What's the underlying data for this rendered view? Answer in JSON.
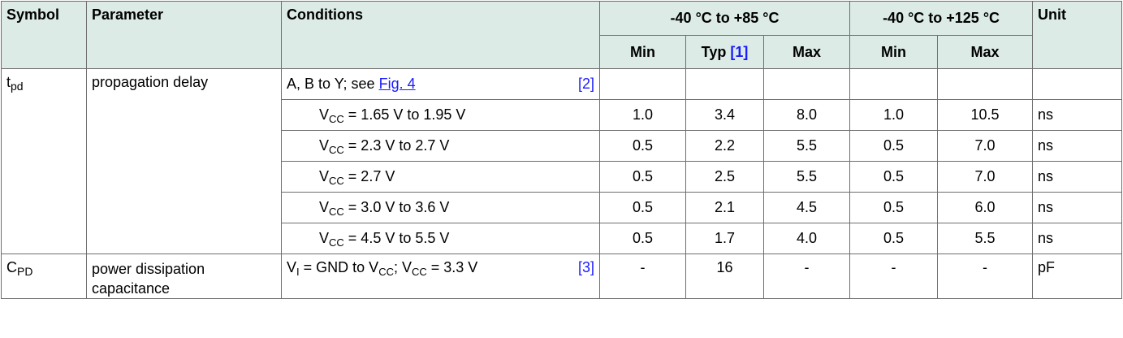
{
  "header": {
    "symbol": "Symbol",
    "parameter": "Parameter",
    "conditions": "Conditions",
    "range1": "-40 °C to +85 °C",
    "range2": "-40 °C to +125 °C",
    "unit": "Unit",
    "min": "Min",
    "typ": "Typ",
    "typ_ref": "[1]",
    "max": "Max"
  },
  "tpd": {
    "symbol_main": "t",
    "symbol_sub": "pd",
    "parameter": "propagation delay",
    "cond_text": "A, B to Y; see ",
    "cond_link": "Fig. 4",
    "cond_ref": "[2]"
  },
  "rows": [
    {
      "v": "V",
      "sub": "CC",
      "cond": " = 1.65 V to 1.95 V",
      "min85": "1.0",
      "typ": "3.4",
      "max85": "8.0",
      "min125": "1.0",
      "max125": "10.5",
      "unit": "ns"
    },
    {
      "v": "V",
      "sub": "CC",
      "cond": " = 2.3 V to 2.7 V",
      "min85": "0.5",
      "typ": "2.2",
      "max85": "5.5",
      "min125": "0.5",
      "max125": "7.0",
      "unit": "ns"
    },
    {
      "v": "V",
      "sub": "CC",
      "cond": " = 2.7 V",
      "min85": "0.5",
      "typ": "2.5",
      "max85": "5.5",
      "min125": "0.5",
      "max125": "7.0",
      "unit": "ns"
    },
    {
      "v": "V",
      "sub": "CC",
      "cond": " = 3.0 V to 3.6 V",
      "min85": "0.5",
      "typ": "2.1",
      "max85": "4.5",
      "min125": "0.5",
      "max125": "6.0",
      "unit": "ns"
    },
    {
      "v": "V",
      "sub": "CC",
      "cond": " = 4.5 V to 5.5 V",
      "min85": "0.5",
      "typ": "1.7",
      "max85": "4.0",
      "min125": "0.5",
      "max125": "5.5",
      "unit": "ns"
    }
  ],
  "cpd": {
    "symbol_main": "C",
    "symbol_sub": "PD",
    "parameter_line1": "power dissipation",
    "parameter_line2": "capacitance",
    "cond_a": "V",
    "cond_a_sub": "I",
    "cond_b": " = GND to V",
    "cond_b_sub": "CC",
    "cond_c": "; V",
    "cond_c_sub": "CC",
    "cond_d": " = 3.3 V",
    "cond_ref": "[3]",
    "min85": "-",
    "typ": "16",
    "max85": "-",
    "min125": "-",
    "max125": "-",
    "unit": "pF"
  }
}
